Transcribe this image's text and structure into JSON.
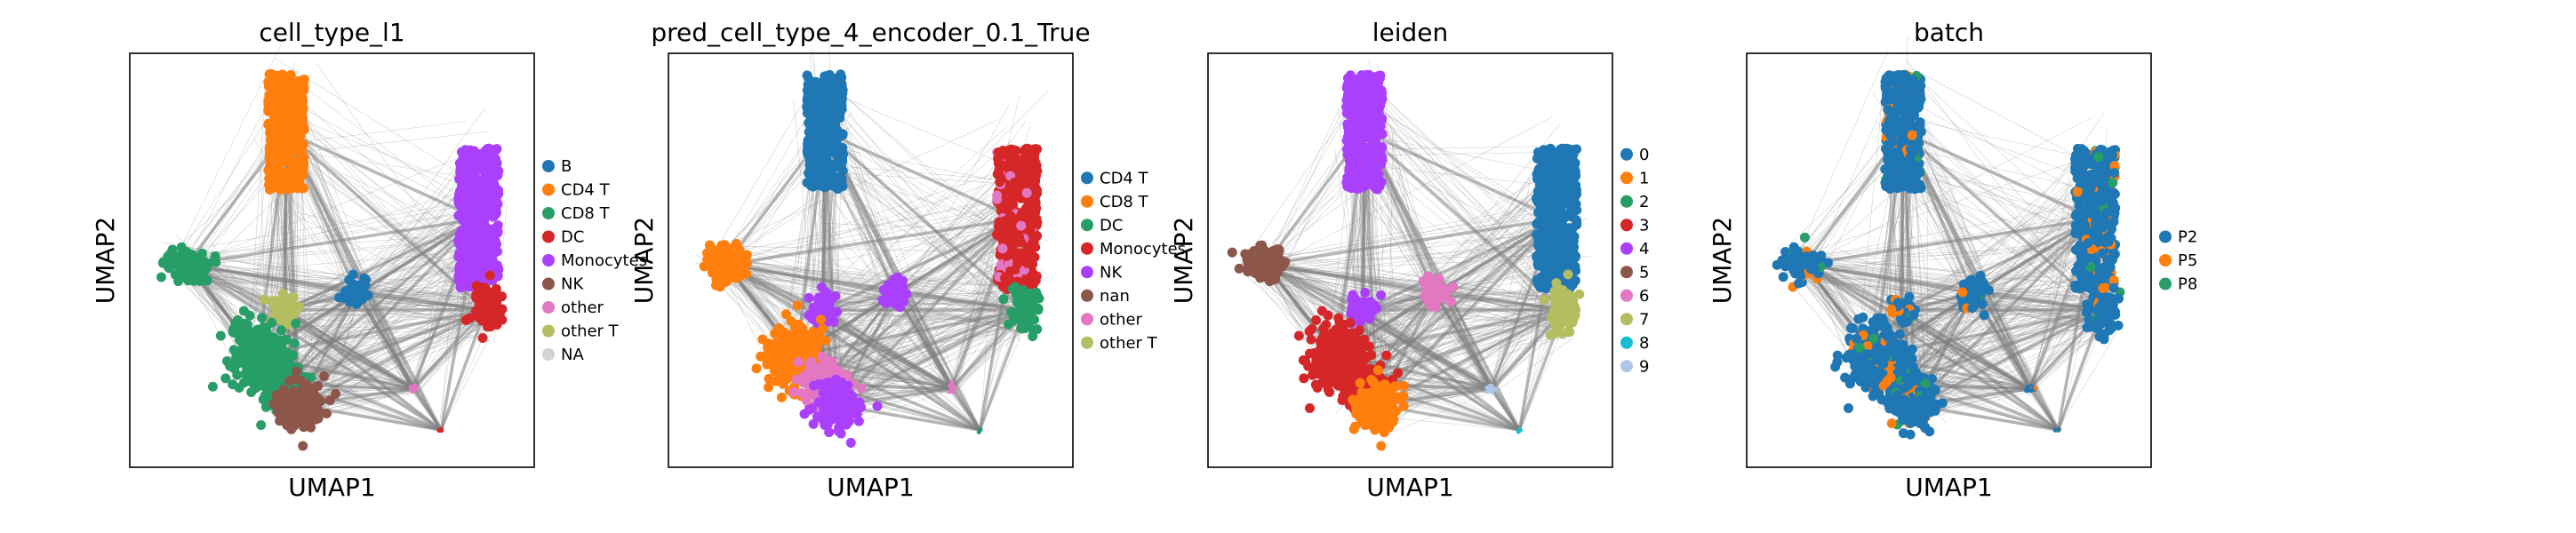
{
  "chart_data": [
    {
      "type": "scatter",
      "title": "cell_type_l1",
      "xlabel": "UMAP1",
      "ylabel": "UMAP2",
      "grid": false,
      "legend_position": "right",
      "series": [
        {
          "name": "B",
          "color": "#1f77b4"
        },
        {
          "name": "CD4 T",
          "color": "#ff7f0e"
        },
        {
          "name": "CD8 T",
          "color": "#279e68"
        },
        {
          "name": "DC",
          "color": "#d62728"
        },
        {
          "name": "Monocytes",
          "color": "#aa40fc"
        },
        {
          "name": "NK",
          "color": "#8c564b"
        },
        {
          "name": "other",
          "color": "#e377c2"
        },
        {
          "name": "other T",
          "color": "#b5bd61"
        },
        {
          "name": "NA",
          "color": "#d3d3d3"
        }
      ]
    },
    {
      "type": "scatter",
      "title": "pred_cell_type_4_encoder_0.1_True",
      "xlabel": "UMAP1",
      "ylabel": "UMAP2",
      "grid": false,
      "legend_position": "right",
      "series": [
        {
          "name": "CD4 T",
          "color": "#1f77b4"
        },
        {
          "name": "CD8 T",
          "color": "#ff7f0e"
        },
        {
          "name": "DC",
          "color": "#279e68"
        },
        {
          "name": "Monocytes",
          "color": "#d62728"
        },
        {
          "name": "NK",
          "color": "#aa40fc"
        },
        {
          "name": "nan",
          "color": "#8c564b"
        },
        {
          "name": "other",
          "color": "#e377c2"
        },
        {
          "name": "other T",
          "color": "#b5bd61"
        }
      ]
    },
    {
      "type": "scatter",
      "title": "leiden",
      "xlabel": "UMAP1",
      "ylabel": "UMAP2",
      "grid": false,
      "legend_position": "right",
      "series": [
        {
          "name": "0",
          "color": "#1f77b4"
        },
        {
          "name": "1",
          "color": "#ff7f0e"
        },
        {
          "name": "2",
          "color": "#279e68"
        },
        {
          "name": "3",
          "color": "#d62728"
        },
        {
          "name": "4",
          "color": "#aa40fc"
        },
        {
          "name": "5",
          "color": "#8c564b"
        },
        {
          "name": "6",
          "color": "#e377c2"
        },
        {
          "name": "7",
          "color": "#b5bd61"
        },
        {
          "name": "8",
          "color": "#17becf"
        },
        {
          "name": "9",
          "color": "#aec7e8"
        }
      ]
    },
    {
      "type": "scatter",
      "title": "batch",
      "xlabel": "UMAP1",
      "ylabel": "UMAP2",
      "grid": false,
      "legend_position": "right",
      "series": [
        {
          "name": "P2",
          "color": "#1f77b4"
        },
        {
          "name": "P5",
          "color": "#ff7f0e"
        },
        {
          "name": "P8",
          "color": "#279e68"
        }
      ]
    }
  ]
}
